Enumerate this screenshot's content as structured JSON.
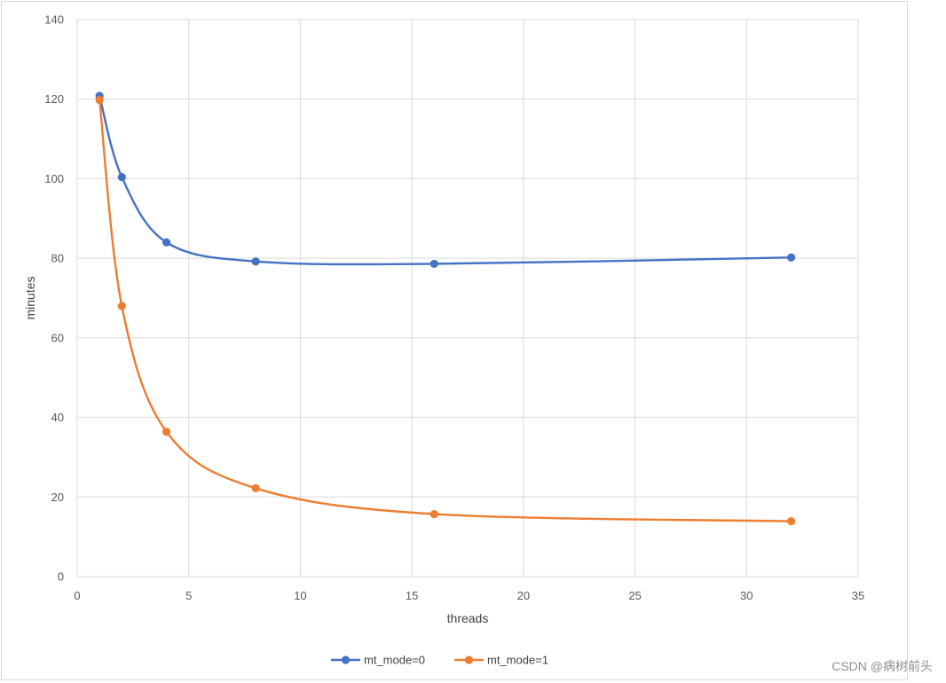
{
  "chart_data": {
    "type": "line",
    "title": "",
    "xlabel": "threads",
    "ylabel": "minutes",
    "xlim": [
      0,
      35
    ],
    "ylim": [
      0,
      140
    ],
    "xticks": [
      0,
      5,
      10,
      15,
      20,
      25,
      30,
      35
    ],
    "yticks": [
      0,
      20,
      40,
      60,
      80,
      100,
      120,
      140
    ],
    "grid": true,
    "smooth": true,
    "legend_position": "bottom",
    "series": [
      {
        "name": "mt_mode=0",
        "color": "#4472C4",
        "x": [
          1,
          2,
          4,
          8,
          16,
          32
        ],
        "y": [
          120.8,
          100.4,
          84.0,
          79.2,
          78.6,
          80.2
        ]
      },
      {
        "name": "mt_mode=1",
        "color": "#ED7D31",
        "x": [
          1,
          2,
          4,
          8,
          16,
          32
        ],
        "y": [
          119.8,
          68.0,
          36.4,
          22.2,
          15.7,
          13.9
        ]
      }
    ]
  },
  "watermark": "CSDN @病树前头"
}
